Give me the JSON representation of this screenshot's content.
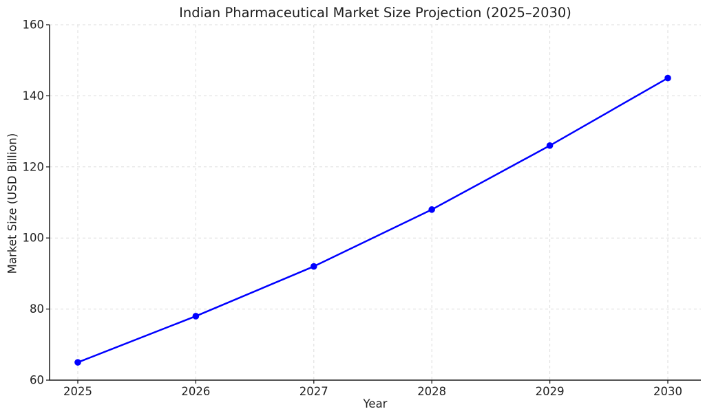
{
  "chart_data": {
    "type": "line",
    "title": "Indian Pharmaceutical Market Size Projection (2025–2030)",
    "xlabel": "Year",
    "ylabel": "Market Size (USD Billion)",
    "x": [
      2025,
      2026,
      2027,
      2028,
      2029,
      2030
    ],
    "xticks": [
      "2025",
      "2026",
      "2027",
      "2028",
      "2029",
      "2030"
    ],
    "series": [
      {
        "name": "Market Size (USD Billion)",
        "values": [
          65,
          78,
          92,
          108,
          126,
          145
        ],
        "color": "#0000ff",
        "marker": "circle"
      }
    ],
    "ylim": [
      60,
      160
    ],
    "yticks": [
      60,
      80,
      100,
      120,
      140,
      160
    ],
    "grid": true,
    "grid_linestyle": "dashed",
    "legend_position": "none",
    "colors": {
      "line": "#0000ff",
      "grid": "#dcdcdc",
      "spine": "#1a1a1a",
      "tick_text": "#1f1f1f",
      "background": "#ffffff"
    }
  }
}
